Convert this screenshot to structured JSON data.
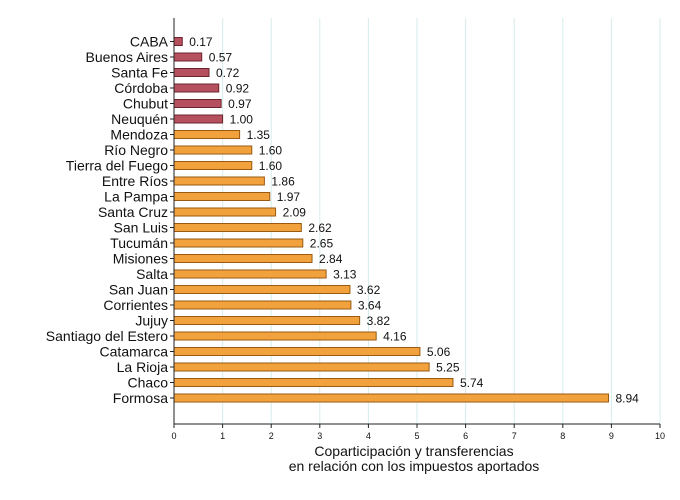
{
  "chart_data": {
    "type": "bar",
    "orientation": "horizontal",
    "title": "",
    "xlabel_lines": [
      "Coparticipación y transferencias",
      "en relación con los impuestos aportados"
    ],
    "ylabel": "",
    "xlim": [
      0,
      10
    ],
    "xticks": [
      0,
      1,
      2,
      3,
      4,
      5,
      6,
      7,
      8,
      9,
      10
    ],
    "grid": "vertical",
    "categories": [
      "CABA",
      "Buenos Aires",
      "Santa Fe",
      "Córdoba",
      "Chubut",
      "Neuquén",
      "Mendoza",
      "Río Negro",
      "Tierra del Fuego",
      "Entre Ríos",
      "La Pampa",
      "Santa Cruz",
      "San Luis",
      "Tucumán",
      "Misiones",
      "Salta",
      "San Juan",
      "Corrientes",
      "Jujuy",
      "Santiago del Estero",
      "Catamarca",
      "La Rioja",
      "Chaco",
      "Formosa"
    ],
    "values": [
      0.17,
      0.57,
      0.72,
      0.92,
      0.97,
      1.0,
      1.35,
      1.6,
      1.6,
      1.86,
      1.97,
      2.09,
      2.62,
      2.65,
      2.84,
      3.13,
      3.62,
      3.64,
      3.82,
      4.16,
      5.06,
      5.25,
      5.74,
      8.94
    ],
    "value_labels": [
      "0.17",
      "0.57",
      "0.72",
      "0.92",
      "0.97",
      "1.00",
      "1.35",
      "1.60",
      "1.60",
      "1.86",
      "1.97",
      "2.09",
      "2.62",
      "2.65",
      "2.84",
      "3.13",
      "3.62",
      "3.64",
      "3.82",
      "4.16",
      "5.06",
      "5.25",
      "5.74",
      "8.94"
    ],
    "groups": [
      "contributor",
      "contributor",
      "contributor",
      "contributor",
      "contributor",
      "contributor",
      "receiver",
      "receiver",
      "receiver",
      "receiver",
      "receiver",
      "receiver",
      "receiver",
      "receiver",
      "receiver",
      "receiver",
      "receiver",
      "receiver",
      "receiver",
      "receiver",
      "receiver",
      "receiver",
      "receiver",
      "receiver"
    ],
    "colors": {
      "contributor_fill": "#b5515e",
      "contributor_stroke": "#6e2430",
      "receiver_fill": "#f2a23c",
      "receiver_stroke": "#9a5a12",
      "grid": "#d5ecec",
      "axis": "#222222"
    }
  }
}
